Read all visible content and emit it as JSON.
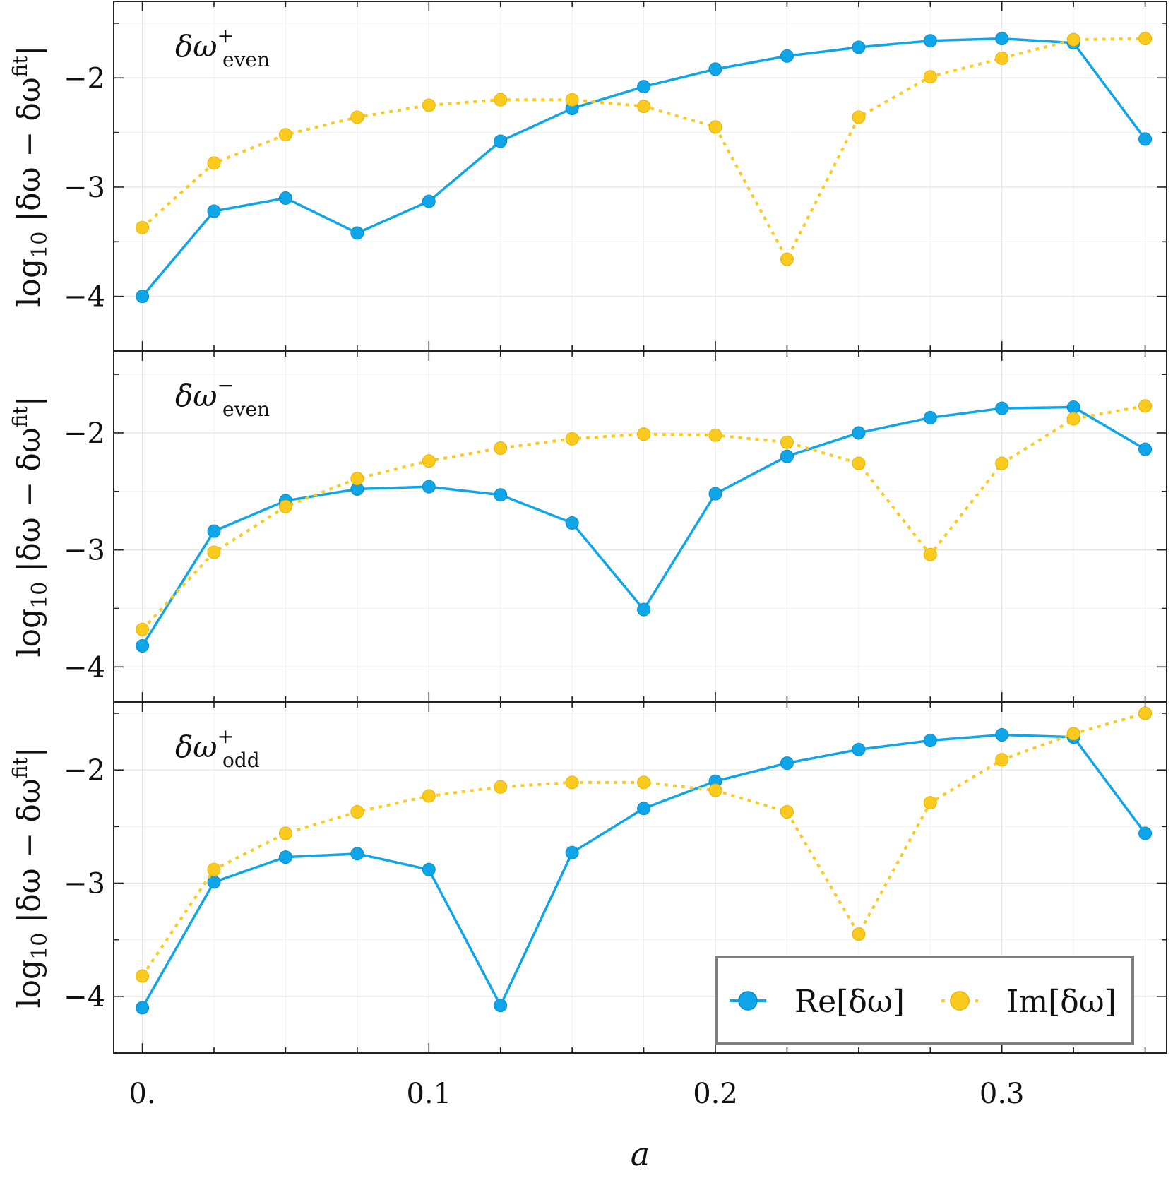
{
  "chart_data": {
    "type": "line",
    "xlabel": "a",
    "ylabel": "log₁₀|δω − δω^fit|",
    "ylabel_parts": {
      "main": "log",
      "sub": "10",
      "mid": " |δω − δω",
      "sup": "fit",
      "end": "|"
    },
    "xlim": [
      -0.01,
      0.3575
    ],
    "x_ticks": [
      0.0,
      0.1,
      0.2,
      0.3
    ],
    "x_tick_labels": [
      "0.",
      "0.1",
      "0.2",
      "0.3"
    ],
    "y_ticks": [
      -4,
      -3,
      -2
    ],
    "y_tick_labels": [
      "−4",
      "−3",
      "−2"
    ],
    "grid": true,
    "legend_position": "bottom-right",
    "colors": {
      "re": "#0ea5e9",
      "im": "#fbca1f"
    },
    "x": [
      0.0,
      0.025,
      0.05,
      0.075,
      0.1,
      0.125,
      0.15,
      0.175,
      0.2,
      0.225,
      0.25,
      0.275,
      0.3,
      0.325,
      0.35
    ],
    "panels": [
      {
        "label_main": "δω",
        "label_sup": "+",
        "label_sub": "even",
        "ylim": [
          -4.5,
          -1.3
        ],
        "series": [
          {
            "name": "Re[δω]",
            "style": "solid",
            "values": [
              -4.0,
              -3.22,
              -3.1,
              -3.42,
              -3.13,
              -2.58,
              -2.28,
              -2.08,
              -1.92,
              -1.8,
              -1.72,
              -1.66,
              -1.64,
              -1.68,
              -2.56
            ]
          },
          {
            "name": "Im[δω]",
            "style": "dotted",
            "values": [
              -3.37,
              -2.78,
              -2.52,
              -2.36,
              -2.25,
              -2.2,
              -2.2,
              -2.26,
              -2.45,
              -3.66,
              -2.36,
              -1.99,
              -1.82,
              -1.65,
              -1.64
            ]
          }
        ]
      },
      {
        "label_main": "δω",
        "label_sup": "−",
        "label_sub": "even",
        "ylim": [
          -4.3,
          -1.3
        ],
        "series": [
          {
            "name": "Re[δω]",
            "style": "solid",
            "values": [
              -3.82,
              -2.84,
              -2.58,
              -2.48,
              -2.46,
              -2.53,
              -2.77,
              -3.51,
              -2.52,
              -2.2,
              -2.0,
              -1.87,
              -1.79,
              -1.78,
              -2.14
            ]
          },
          {
            "name": "Im[δω]",
            "style": "dotted",
            "values": [
              -3.68,
              -3.02,
              -2.63,
              -2.39,
              -2.24,
              -2.13,
              -2.05,
              -2.01,
              -2.02,
              -2.08,
              -2.26,
              -3.04,
              -2.26,
              -1.88,
              -1.77
            ]
          }
        ]
      },
      {
        "label_main": "δω",
        "label_sup": "+",
        "label_sub": "odd",
        "ylim": [
          -4.5,
          -1.4
        ],
        "series": [
          {
            "name": "Re[δω]",
            "style": "solid",
            "values": [
              -4.1,
              -2.99,
              -2.77,
              -2.74,
              -2.88,
              -4.08,
              -2.73,
              -2.34,
              -2.1,
              -1.94,
              -1.82,
              -1.74,
              -1.69,
              -1.71,
              -2.56
            ]
          },
          {
            "name": "Im[δω]",
            "style": "dotted",
            "values": [
              -3.82,
              -2.88,
              -2.56,
              -2.37,
              -2.23,
              -2.15,
              -2.11,
              -2.11,
              -2.18,
              -2.37,
              -3.45,
              -2.29,
              -1.91,
              -1.68,
              -1.5
            ]
          }
        ]
      }
    ]
  },
  "legend": {
    "items": [
      {
        "label": "Re[δω]",
        "color": "#0ea5e9",
        "style": "solid"
      },
      {
        "label": "Im[δω]",
        "color": "#fbca1f",
        "style": "dotted"
      }
    ]
  }
}
